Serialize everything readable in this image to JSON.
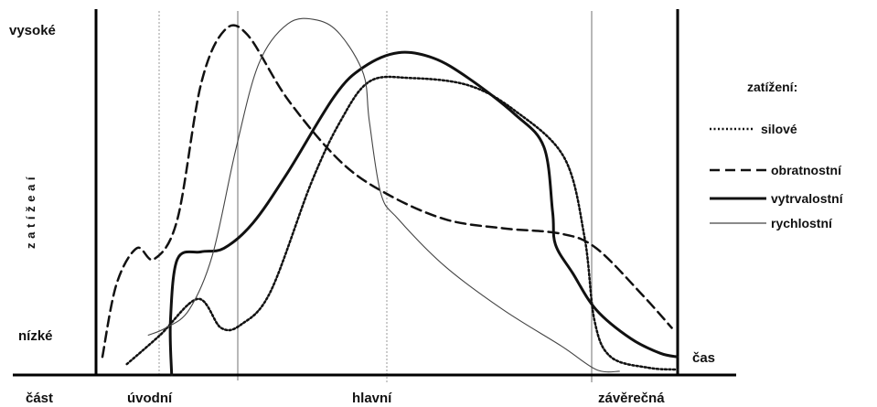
{
  "chart_data": {
    "type": "line",
    "title": "",
    "y_axis": {
      "label": "z a t í ž e a í",
      "high_label": "vysoké",
      "low_label": "nízké",
      "range": [
        0,
        10
      ]
    },
    "x_axis": {
      "label": "čas",
      "parts_label": "část",
      "range": [
        0,
        100
      ],
      "phases": [
        {
          "label": "úvodní",
          "start": 0,
          "end": 16.6
        },
        {
          "label": "hlavní",
          "start": 16.6,
          "end": 85.6
        },
        {
          "label": "závěrečná",
          "start": 85.6,
          "end": 100
        }
      ]
    },
    "grid": false,
    "legend": {
      "title": "zatížení:",
      "position": "right"
    },
    "series": [
      {
        "name": "silové",
        "style": "dotted",
        "color": "#111111",
        "points": [
          [
            5.3,
            0.3
          ],
          [
            11,
            1.1
          ],
          [
            17.5,
            2.1
          ],
          [
            21.5,
            1.3
          ],
          [
            25,
            1.4
          ],
          [
            30,
            2.3
          ],
          [
            37,
            5.3
          ],
          [
            42,
            7.0
          ],
          [
            47,
            8.1
          ],
          [
            54,
            8.2
          ],
          [
            64,
            8.0
          ],
          [
            72,
            7.3
          ],
          [
            80.5,
            6.0
          ],
          [
            84,
            3.8
          ],
          [
            85.7,
            1.5
          ],
          [
            88.5,
            0.5
          ],
          [
            95,
            0.2
          ],
          [
            100,
            0.15
          ]
        ]
      },
      {
        "name": "obratnostní",
        "style": "dashed",
        "color": "#111111",
        "points": [
          [
            1.1,
            0.5
          ],
          [
            3.5,
            2.5
          ],
          [
            7,
            3.5
          ],
          [
            10,
            3.2
          ],
          [
            14,
            4.3
          ],
          [
            18,
            8.0
          ],
          [
            22,
            9.5
          ],
          [
            26,
            9.4
          ],
          [
            33,
            7.6
          ],
          [
            42,
            5.9
          ],
          [
            50,
            5.0
          ],
          [
            60,
            4.3
          ],
          [
            70,
            4.05
          ],
          [
            80,
            3.9
          ],
          [
            86,
            3.5
          ],
          [
            94,
            2.2
          ],
          [
            99,
            1.3
          ]
        ]
      },
      {
        "name": "vytrvalostní",
        "style": "solid-thick",
        "color": "#111111",
        "points": [
          [
            13,
            0
          ],
          [
            12.8,
            1.5
          ],
          [
            14,
            3.2
          ],
          [
            18,
            3.4
          ],
          [
            22,
            3.5
          ],
          [
            27,
            4.2
          ],
          [
            33,
            5.6
          ],
          [
            41,
            7.7
          ],
          [
            46,
            8.5
          ],
          [
            52,
            8.9
          ],
          [
            58,
            8.75
          ],
          [
            64,
            8.2
          ],
          [
            72,
            7.2
          ],
          [
            77,
            6.3
          ],
          [
            78.5,
            4.5
          ],
          [
            79,
            3.6
          ],
          [
            82,
            2.8
          ],
          [
            86,
            1.8
          ],
          [
            92,
            1.0
          ],
          [
            97,
            0.6
          ],
          [
            100,
            0.5
          ]
        ]
      },
      {
        "name": "rychlostní",
        "style": "solid-thin",
        "color": "#444444",
        "points": [
          [
            9,
            1.1
          ],
          [
            12,
            1.3
          ],
          [
            16,
            1.8
          ],
          [
            20,
            3.3
          ],
          [
            24,
            6.2
          ],
          [
            28,
            8.6
          ],
          [
            33,
            9.7
          ],
          [
            38,
            9.8
          ],
          [
            42,
            9.4
          ],
          [
            46,
            8.3
          ],
          [
            47,
            7.0
          ],
          [
            49,
            5.0
          ],
          [
            52,
            4.3
          ],
          [
            60,
            3.0
          ],
          [
            70,
            1.8
          ],
          [
            80,
            0.8
          ],
          [
            86,
            0.15
          ],
          [
            90,
            0.1
          ]
        ]
      }
    ]
  }
}
